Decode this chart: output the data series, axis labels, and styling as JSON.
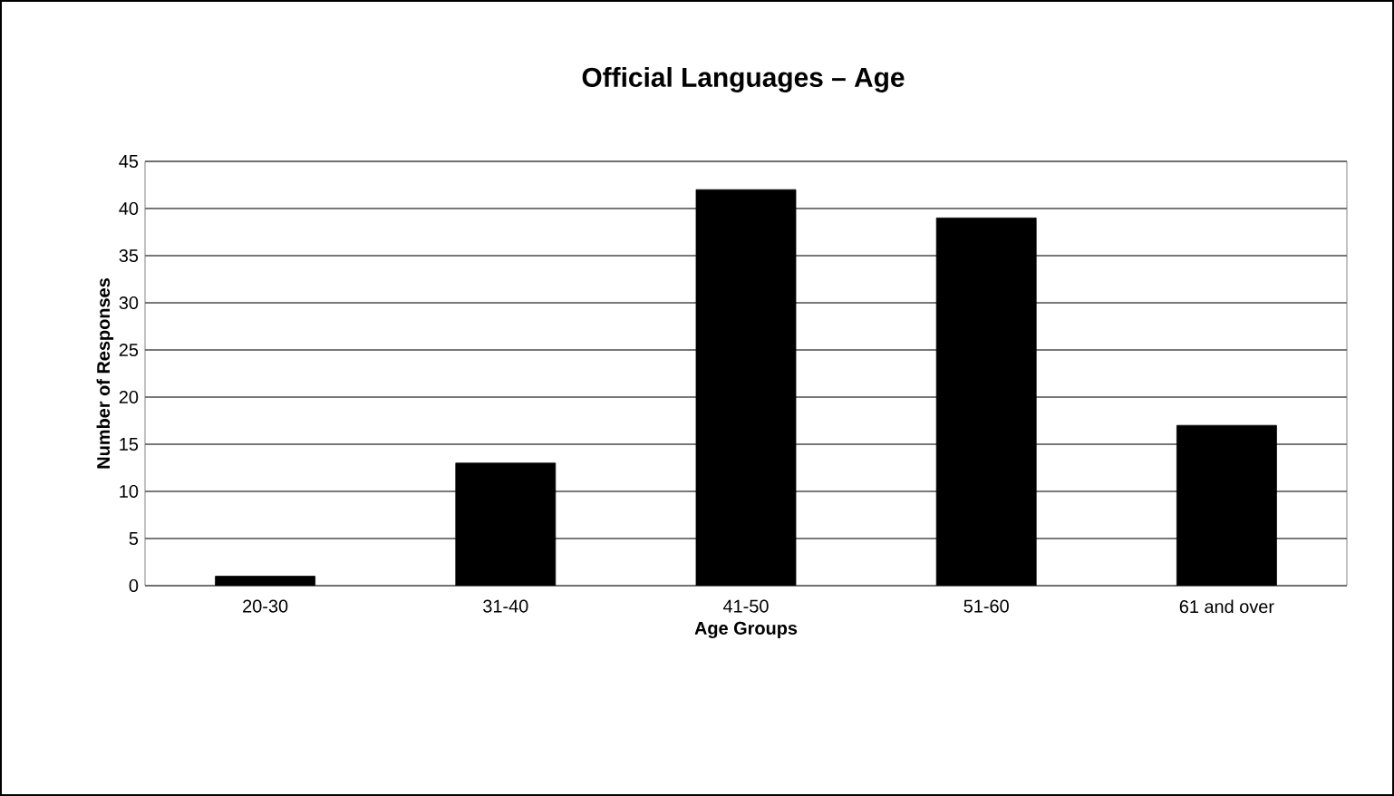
{
  "chart_data": {
    "type": "bar",
    "title": "Official Languages – Age",
    "xlabel": "Age Groups",
    "ylabel": "Number of Responses",
    "categories": [
      "20-30",
      "31-40",
      "41-50",
      "51-60",
      "61 and over"
    ],
    "values": [
      1,
      13,
      42,
      39,
      17
    ],
    "color": "#000000",
    "ylim": [
      0,
      45
    ],
    "yticks": [
      0,
      5,
      10,
      15,
      20,
      25,
      30,
      35,
      40,
      45
    ],
    "grid": "y"
  }
}
